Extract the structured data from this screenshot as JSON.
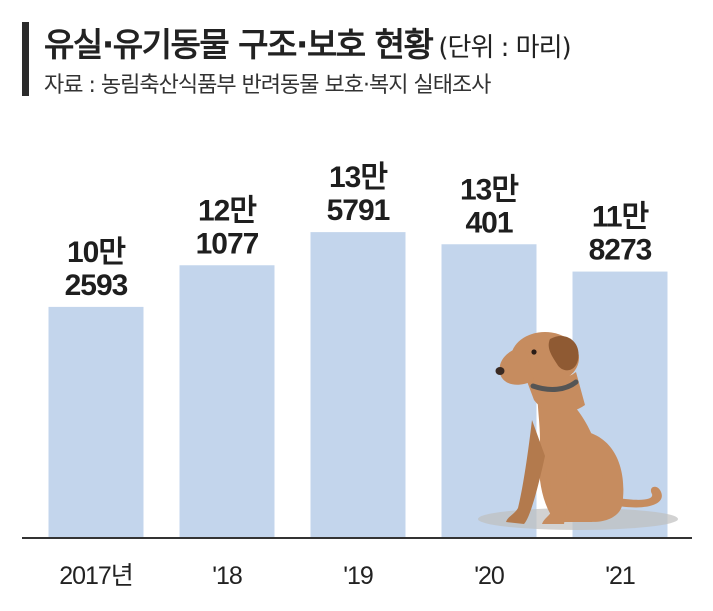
{
  "header": {
    "title": "유실·유기동물 구조·보호 현황",
    "unit": "(단위 : 마리)",
    "source": "자료 : 농림축산식품부 반려동물 보호·복지 실태조사"
  },
  "chart_data": {
    "type": "bar",
    "categories": [
      "2017년",
      "'18",
      "'19",
      "'20",
      "'21"
    ],
    "values": [
      102593,
      121077,
      135791,
      130401,
      118273
    ],
    "value_labels": [
      [
        "10만",
        "2593"
      ],
      [
        "12만",
        "1077"
      ],
      [
        "13만",
        "5791"
      ],
      [
        "13만",
        "401"
      ],
      [
        "11만",
        "8273"
      ]
    ],
    "ylim": [
      0,
      190000
    ],
    "bar_color": "#c3d5ec",
    "grid": false,
    "title": "유실·유기동물 구조·보호 현황",
    "xlabel": "",
    "ylabel": ""
  },
  "illustration": {
    "icon": "sitting-dog-icon",
    "body_color": "#c68c5f",
    "ear_color": "#8f5a33",
    "collar_color": "#555555"
  }
}
